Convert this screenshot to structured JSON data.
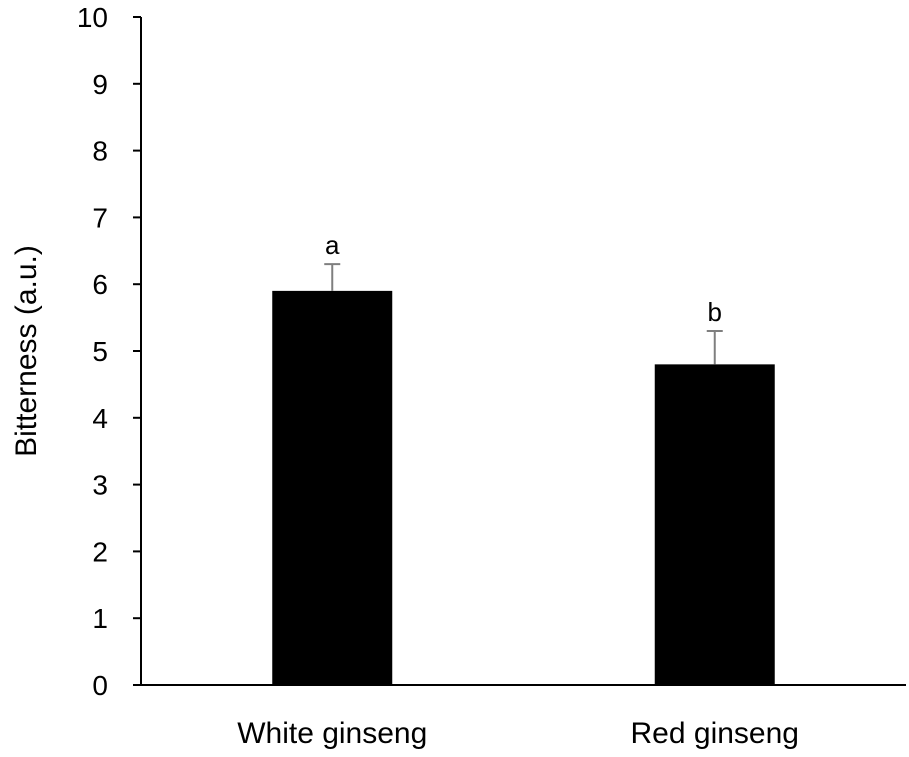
{
  "chart_data": {
    "type": "bar",
    "title": "",
    "xlabel": "",
    "ylabel": "Bitterness (a.u.)",
    "ylim": [
      0,
      10
    ],
    "yticks": [
      "0",
      "1",
      "2",
      "3",
      "4",
      "5",
      "6",
      "7",
      "8",
      "9",
      "10"
    ],
    "categories": [
      "White ginseng",
      "Red ginseng"
    ],
    "values": [
      5.9,
      4.8
    ],
    "errors": [
      0.4,
      0.5
    ],
    "significance_labels": [
      "a",
      "b"
    ],
    "bar_color": "#000000",
    "error_bar_color": "#7f7f7f",
    "grid": false,
    "legend": "none"
  }
}
